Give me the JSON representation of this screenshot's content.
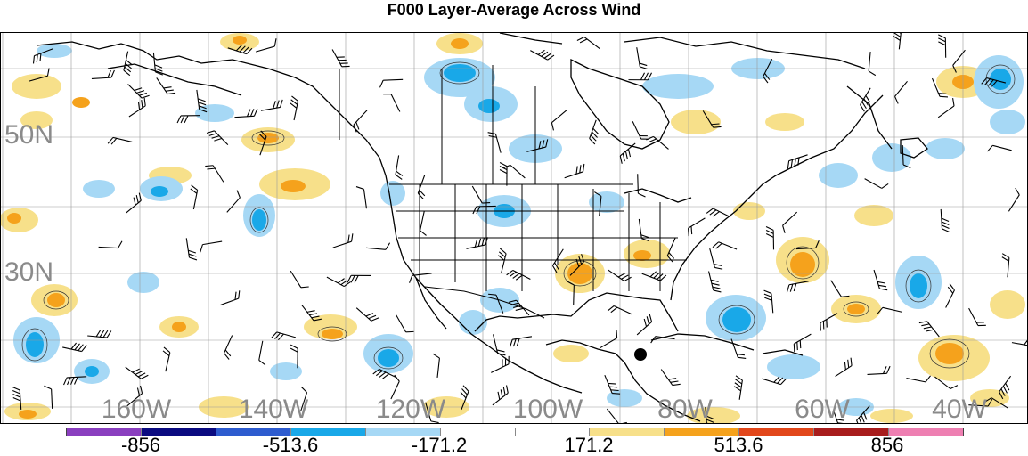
{
  "title": "F000 Layer-Average Across Wind",
  "map": {
    "lat_labels": [
      "50N",
      "30N"
    ],
    "lon_labels": [
      "160W",
      "140W",
      "120W",
      "100W",
      "80W",
      "60W",
      "40W"
    ],
    "marker": "storm-center-dot"
  },
  "colorbar": {
    "colors": [
      "#8a3fbf",
      "#0b0b80",
      "#2e5ccf",
      "#19a8e8",
      "#a6d8f5",
      "#ffffff",
      "#ffffff",
      "#f7e08a",
      "#f5a21c",
      "#e2471b",
      "#a81d1d",
      "#ee7fb2"
    ],
    "labels": [
      "-856",
      "-513.6",
      "-171.2",
      "171.2",
      "513.6",
      "856"
    ]
  },
  "colors": {
    "positive_low": "#f7e08a",
    "positive_mid": "#f5a21c",
    "negative_low": "#a6d8f5",
    "negative_mid": "#19a8e8",
    "grid": "#9a9a9a",
    "coast": "#000000",
    "lat_lon_labels": "#8a8a8a"
  }
}
